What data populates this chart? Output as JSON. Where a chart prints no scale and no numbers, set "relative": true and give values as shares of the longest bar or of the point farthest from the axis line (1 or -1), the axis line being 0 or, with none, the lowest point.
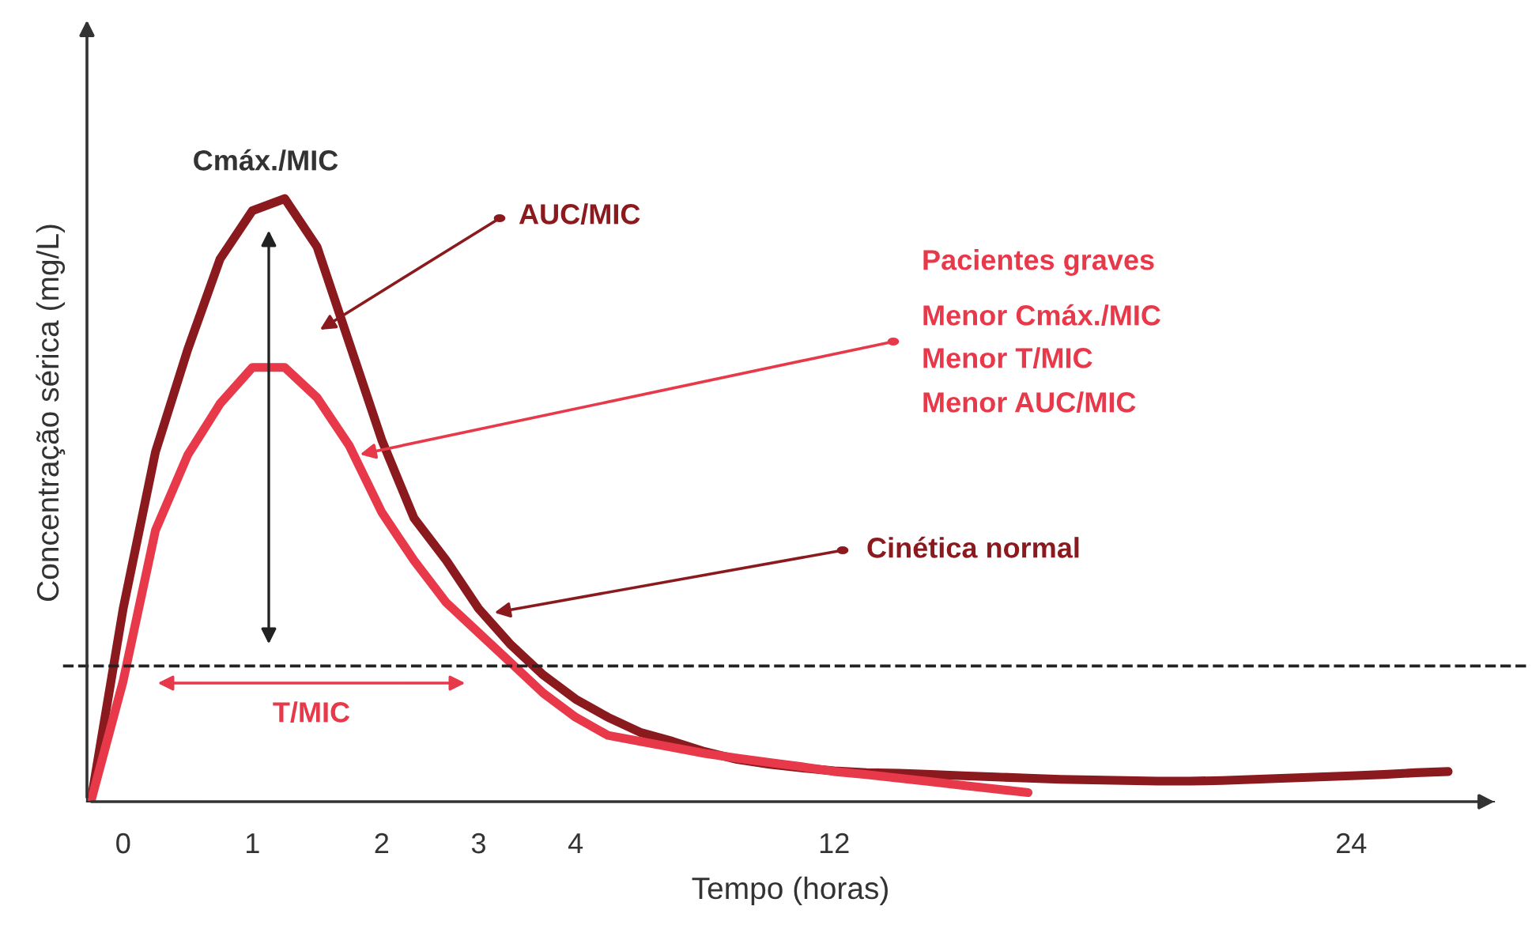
{
  "chart_data": {
    "type": "line",
    "xlabel": "Tempo (horas)",
    "ylabel": "Concentração sérica (mg/L)",
    "relative": true,
    "tick_labels": "x",
    "categories": [
      null,
      "0",
      null,
      null,
      null,
      "1",
      null,
      null,
      null,
      "2",
      null,
      null,
      "3",
      null,
      null,
      "4",
      null,
      null,
      null,
      null,
      null,
      null,
      null,
      "12",
      null,
      null,
      null,
      null,
      null,
      null,
      null,
      null,
      null,
      null,
      null,
      null,
      null,
      null,
      null,
      "24",
      null,
      null,
      null
    ],
    "series": [
      {
        "name": "Cinética normal",
        "color": "#8b1a1f",
        "values": [
          0,
          0.32,
          0.58,
          0.75,
          0.9,
          0.98,
          1,
          0.92,
          0.76,
          0.6,
          0.47,
          0.4,
          0.32,
          0.26,
          0.21,
          0.17,
          0.14,
          0.115,
          0.1,
          0.083,
          0.07,
          0.062,
          0.056,
          0.051,
          0.048,
          0.047,
          0.045,
          0.043,
          0.041,
          0.039,
          0.037,
          0.036,
          0.035,
          0.034,
          0.034,
          0.035,
          0.037,
          0.039,
          0.041,
          0.043,
          0.045,
          0.048,
          0.05
        ]
      },
      {
        "name": "Pacientes graves",
        "color": "#e8394b",
        "values": [
          0,
          0.2,
          0.45,
          0.575,
          0.66,
          0.72,
          0.72,
          0.67,
          0.59,
          0.48,
          0.4,
          0.33,
          0.28,
          0.23,
          0.18,
          0.14,
          0.11,
          0.1,
          0.09,
          0.08,
          0.072,
          0.065,
          0.058,
          0.05,
          0.045,
          0.039,
          0.033,
          0.027,
          0.021,
          0.015,
          null,
          null,
          null,
          null,
          null,
          null,
          null,
          null,
          null,
          null,
          null,
          null,
          null
        ]
      }
    ],
    "ref_lines": [
      {
        "axis": "y",
        "value": 0.225,
        "color": "#222222",
        "line_style": "dashed"
      }
    ],
    "annotations": [
      "Cmáx./MIC",
      "AUC/MIC",
      "Menor Cmáx./MIC",
      "Menor T/MIC",
      "Menor AUC/MIC",
      "T/MIC"
    ]
  }
}
